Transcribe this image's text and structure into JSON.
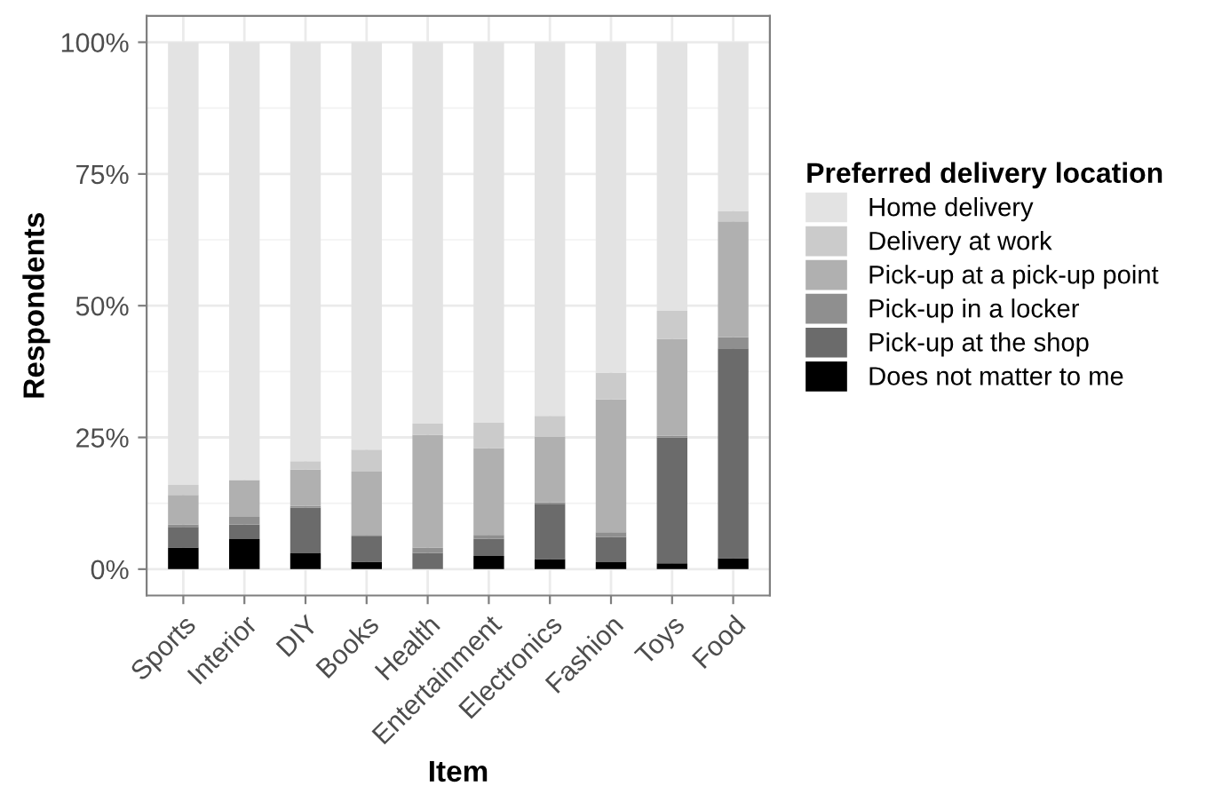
{
  "chart_data": {
    "type": "bar",
    "stacked": true,
    "xlabel": "Item",
    "ylabel": "Respondents",
    "legend_title": "Preferred delivery location",
    "categories": [
      "Sports",
      "Interior",
      "DIY",
      "Books",
      "Health",
      "Entertainment",
      "Electronics",
      "Fashion",
      "Toys",
      "Food"
    ],
    "series": [
      {
        "name": "Does not matter to me",
        "color": "#000000",
        "values": [
          4.1,
          5.7,
          3.0,
          1.4,
          0,
          2.5,
          1.9,
          1.3,
          1.1,
          2.1
        ]
      },
      {
        "name": "Pick-up at the shop",
        "color": "#6b6b6b",
        "values": [
          3.9,
          2.8,
          8.7,
          4.8,
          3.1,
          3.3,
          10.5,
          4.8,
          23.9,
          39.8
        ]
      },
      {
        "name": "Pick-up in a locker",
        "color": "#8f8f8f",
        "values": [
          0.5,
          1.4,
          0.3,
          0.3,
          1.0,
          0.7,
          0.3,
          0.9,
          0.3,
          2.1
        ]
      },
      {
        "name": "Pick-up at a pick-up point",
        "color": "#b0b0b0",
        "values": [
          5.6,
          7.0,
          6.9,
          12.0,
          21.4,
          16.5,
          12.4,
          25.2,
          18.4,
          22.0
        ]
      },
      {
        "name": "Delivery at work",
        "color": "#cbcbcb",
        "values": [
          1.9,
          null,
          1.6,
          4.2,
          2.1,
          4.8,
          4.0,
          5.1,
          5.3,
          2.0
        ]
      },
      {
        "name": "Home delivery",
        "color": "#e3e3e3",
        "values": [
          84.0,
          83.1,
          79.5,
          77.3,
          72.4,
          72.2,
          70.9,
          62.7,
          51.0,
          32.0
        ]
      }
    ],
    "ylim": [
      -5,
      105
    ],
    "yticks": [
      {
        "value": 0,
        "label": "0%"
      },
      {
        "value": 25,
        "label": "25%"
      },
      {
        "value": 50,
        "label": "50%"
      },
      {
        "value": 75,
        "label": "75%"
      },
      {
        "value": 100,
        "label": "100%"
      }
    ],
    "grid": true,
    "legend": "right"
  }
}
